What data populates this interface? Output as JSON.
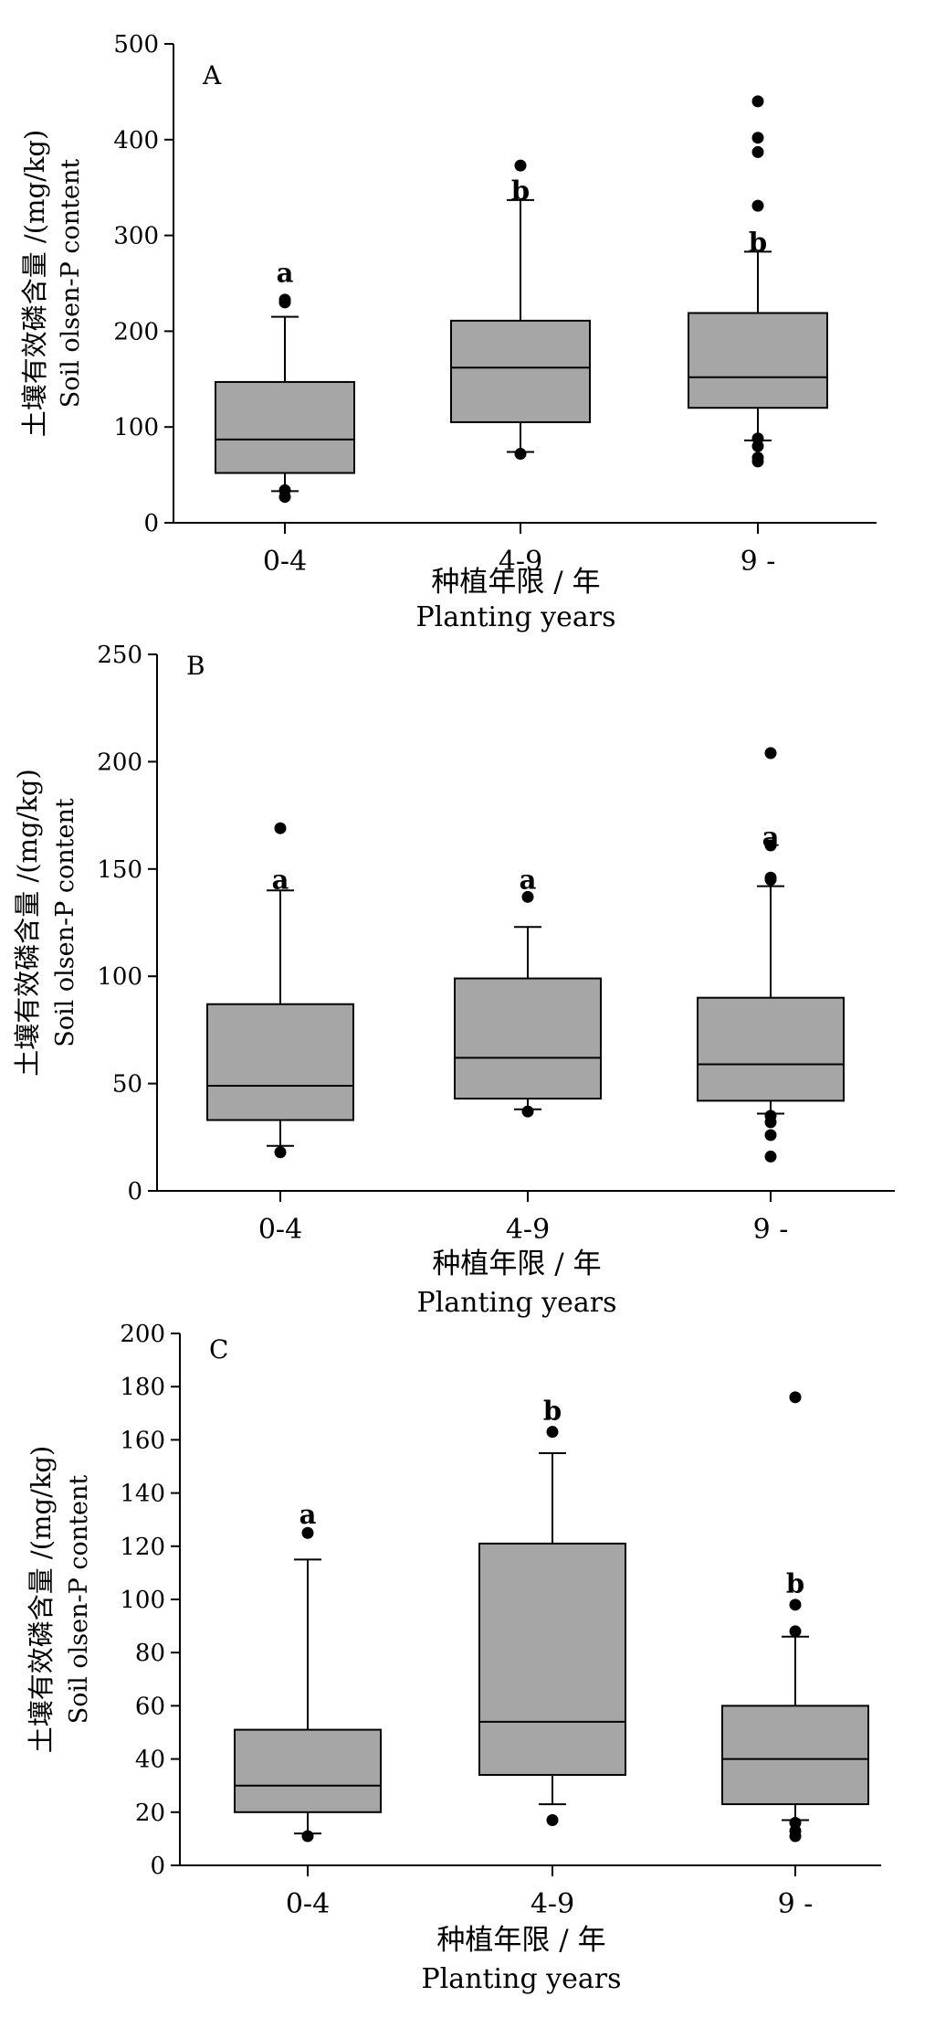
{
  "figure": {
    "panels": [
      "A",
      "B",
      "C"
    ],
    "xlabel_cn": "种植年限 / 年",
    "xlabel_en": "Planting years",
    "ylabel_cn": "土壤有效磷含量 /(mg/kg)",
    "ylabel_en": "Soil olsen-P content"
  },
  "colors": {
    "box_fill": "#a6a6a6",
    "stroke": "#000000",
    "background": "#ffffff"
  },
  "chart_data": [
    {
      "type": "box",
      "panel_label": "A",
      "xlabel": "种植年限 / 年 Planting years",
      "ylabel": "土壤有效磷含量 /(mg/kg) Soil olsen-P content",
      "ylim": [
        0,
        500
      ],
      "yticks": [
        0,
        100,
        200,
        300,
        400,
        500
      ],
      "categories": [
        "0-4",
        "4-9",
        "9 -"
      ],
      "boxes": [
        {
          "category": "0-4",
          "whisker_low": 33,
          "q1": 52,
          "median": 87,
          "q3": 147,
          "whisker_high": 215,
          "outliers": [
            27,
            34,
            230,
            233
          ],
          "sig": "a",
          "sig_y": 261
        },
        {
          "category": "4-9",
          "whisker_low": 74,
          "q1": 105,
          "median": 162,
          "q3": 211,
          "whisker_high": 337,
          "outliers": [
            72,
            373
          ],
          "sig": "b",
          "sig_y": 347
        },
        {
          "category": "9 -",
          "whisker_low": 86,
          "q1": 120,
          "median": 152,
          "q3": 219,
          "whisker_high": 283,
          "outliers": [
            64,
            68,
            80,
            88,
            331,
            387,
            402,
            440
          ],
          "sig": "b",
          "sig_y": 293
        }
      ]
    },
    {
      "type": "box",
      "panel_label": "B",
      "xlabel": "种植年限 / 年 Planting years",
      "ylabel": "土壤有效磷含量 /(mg/kg) Soil olsen-P content",
      "ylim": [
        0,
        250
      ],
      "yticks": [
        0,
        50,
        100,
        150,
        200,
        250
      ],
      "categories": [
        "0-4",
        "4-9",
        "9 -"
      ],
      "boxes": [
        {
          "category": "0-4",
          "whisker_low": 21,
          "q1": 33,
          "median": 49,
          "q3": 87,
          "whisker_high": 140,
          "outliers": [
            18,
            169
          ],
          "sig": "a",
          "sig_y": 145
        },
        {
          "category": "4-9",
          "whisker_low": 38,
          "q1": 43,
          "median": 62,
          "q3": 99,
          "whisker_high": 123,
          "outliers": [
            37,
            137
          ],
          "sig": "a",
          "sig_y": 145
        },
        {
          "category": "9 -",
          "whisker_low": 36,
          "q1": 42,
          "median": 59,
          "q3": 90,
          "whisker_high": 142,
          "outliers": [
            16,
            26,
            32,
            35,
            145,
            146,
            161,
            204
          ],
          "sig": "a",
          "sig_y": 165
        }
      ]
    },
    {
      "type": "box",
      "panel_label": "C",
      "xlabel": "种植年限 / 年 Planting years",
      "ylabel": "土壤有效磷含量 /(mg/kg) Soil olsen-P content",
      "ylim": [
        0,
        200
      ],
      "yticks": [
        0,
        20,
        40,
        60,
        80,
        100,
        120,
        140,
        160,
        180,
        200
      ],
      "categories": [
        "0-4",
        "4-9",
        "9 -"
      ],
      "boxes": [
        {
          "category": "0-4",
          "whisker_low": 12,
          "q1": 20,
          "median": 30,
          "q3": 51,
          "whisker_high": 115,
          "outliers": [
            11,
            125
          ],
          "sig": "a",
          "sig_y": 132
        },
        {
          "category": "4-9",
          "whisker_low": 23,
          "q1": 34,
          "median": 54,
          "q3": 121,
          "whisker_high": 155,
          "outliers": [
            17,
            163
          ],
          "sig": "b",
          "sig_y": 171
        },
        {
          "category": "9 -",
          "whisker_low": 17,
          "q1": 23,
          "median": 40,
          "q3": 60,
          "whisker_high": 86,
          "outliers": [
            11,
            13,
            16,
            88,
            98,
            176
          ],
          "sig": "b",
          "sig_y": 106
        }
      ]
    }
  ]
}
